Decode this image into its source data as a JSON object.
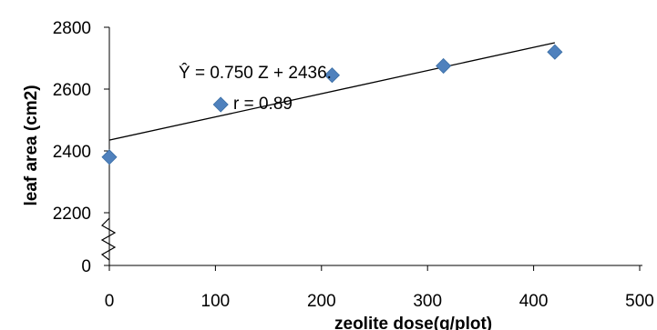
{
  "chart_data": {
    "type": "scatter",
    "xlabel": "zeolite dose(g/plot)",
    "ylabel": "leaf area (cm2)",
    "x_ticks": [
      0,
      100,
      200,
      300,
      400,
      500
    ],
    "x_tick_labels": [
      "0",
      "100",
      "200",
      "300",
      "400",
      "500"
    ],
    "y_ticks": [
      0,
      2200,
      2400,
      2600,
      2800
    ],
    "y_tick_labels": [
      "0",
      "2200",
      "2400",
      "2600",
      "2800"
    ],
    "xlim": [
      0,
      500
    ],
    "ylim": [
      2150,
      2800
    ],
    "y_axis_break": true,
    "grid": false,
    "series": [
      {
        "x": [
          0,
          105,
          210,
          315,
          420
        ],
        "y": [
          2380,
          2550,
          2645,
          2675,
          2720
        ],
        "marker": "diamond",
        "color": "#4f81bd"
      }
    ],
    "trendline": {
      "x": [
        0,
        420
      ],
      "y": [
        2435,
        2750
      ],
      "color": "#000000"
    },
    "annotations": [
      {
        "text": "Ŷ = 0.750   Z + 2436."
      },
      {
        "text": "r = 0.89"
      }
    ]
  }
}
